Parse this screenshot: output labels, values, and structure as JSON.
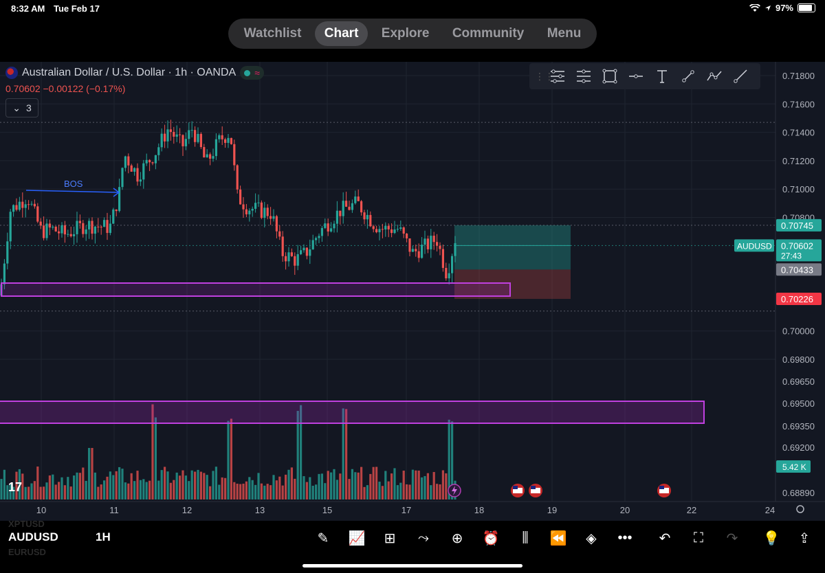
{
  "status_bar": {
    "time": "8:32 AM",
    "date": "Tue Feb 17",
    "battery": "97%"
  },
  "nav": {
    "tabs": [
      "Watchlist",
      "Chart",
      "Explore",
      "Community",
      "Menu"
    ],
    "active": "Chart"
  },
  "chart": {
    "title": "Australian Dollar / U.S. Dollar · 1h · OANDA",
    "price_change": "0.70602  −0.00122 (−0.17%)",
    "indicators_count": "3",
    "bos_label": "BOS",
    "symbol_tag": "AUDUSD",
    "countdown": "27:43",
    "volume_label": "5.42 K",
    "price_labels": [
      {
        "text": "0.71800",
        "value": 0.718
      },
      {
        "text": "0.71600",
        "value": 0.716
      },
      {
        "text": "0.71400",
        "value": 0.714
      },
      {
        "text": "0.71200",
        "value": 0.712
      },
      {
        "text": "0.71000",
        "value": 0.71
      },
      {
        "text": "0.70800",
        "value": 0.708
      },
      {
        "text": "0.70000",
        "value": 0.7
      },
      {
        "text": "0.69800",
        "value": 0.698
      },
      {
        "text": "0.69650",
        "value": 0.6965
      },
      {
        "text": "0.69500",
        "value": 0.695
      },
      {
        "text": "0.69350",
        "value": 0.6935
      },
      {
        "text": "0.69200",
        "value": 0.692
      },
      {
        "text": "0.68890",
        "value": 0.6889
      }
    ],
    "marked_prices": [
      {
        "text": "0.70745",
        "value": 0.70745,
        "color": "#26a69a"
      },
      {
        "text": "0.70602",
        "value": 0.70602,
        "color": "#26a69a"
      },
      {
        "text": "0.70433",
        "value": 0.70433,
        "color": "#787b86"
      },
      {
        "text": "0.70226",
        "value": 0.70226,
        "color": "#f23645"
      }
    ],
    "date_labels": [
      "10",
      "11",
      "12",
      "13",
      "15",
      "17",
      "18",
      "19",
      "20",
      "22",
      "24"
    ],
    "colors": {
      "up": "#26a69a",
      "down": "#ef5350",
      "zone": "#9c27b0",
      "bos": "#2962ff",
      "background": "#131722"
    }
  },
  "bottom_bar": {
    "symbol": "AUDUSD",
    "interval": "1H",
    "ghost_above": "XPTUSD",
    "ghost_below": "EURUSD",
    "icons": [
      "pencil-icon",
      "indicators-icon",
      "grid-icon",
      "compare-icon",
      "plus-icon",
      "alarm-icon",
      "candles-icon",
      "replay-icon",
      "layers-icon",
      "more-icon",
      "undo-icon",
      "fullscreen-icon",
      "redo-icon",
      "idea-icon",
      "share-icon"
    ]
  }
}
